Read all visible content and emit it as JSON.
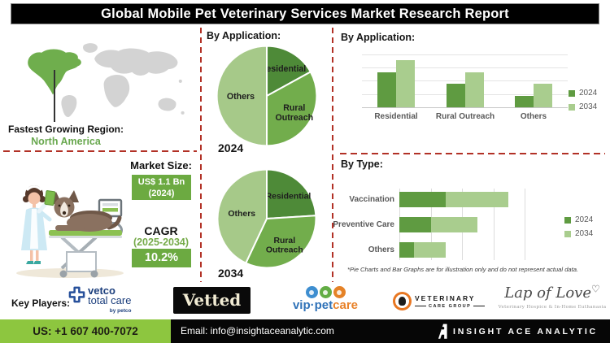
{
  "title": "Global Mobile Pet Veterinary Services Market Research Report",
  "region": {
    "label": "Fastest Growing Region:",
    "value": "North America"
  },
  "market": {
    "size_label": "Market Size:",
    "size_value": "US$ 1.1 Bn",
    "size_year": "(2024)",
    "cagr_label": "CAGR",
    "cagr_period": "(2025-2034)",
    "cagr_value": "10.2%"
  },
  "sections": {
    "pie_header": "By Application:",
    "bar_header": "By Application:",
    "type_header": "By Type:",
    "note": "*Pie Charts and Bar Graphs are for illustration only and do not represent actual data."
  },
  "chart_data": [
    {
      "type": "pie",
      "year": "2024",
      "title": "By Application 2024",
      "labels": [
        "Residential",
        "Rural Outreach",
        "Others"
      ],
      "labels_lines": [
        [
          "Residential"
        ],
        [
          "Rural",
          "Outreach"
        ],
        [
          "Others"
        ]
      ],
      "values": [
        17,
        33,
        50
      ],
      "colors": [
        "#4e8a38",
        "#72ad4c",
        "#a6c989"
      ]
    },
    {
      "type": "pie",
      "year": "2034",
      "title": "By Application 2034",
      "labels": [
        "Residential",
        "Rural Outreach",
        "Others"
      ],
      "labels_lines": [
        [
          "Residential"
        ],
        [
          "Rural",
          "Outreach"
        ],
        [
          "Others"
        ]
      ],
      "values": [
        24,
        33,
        43
      ],
      "colors": [
        "#4e8a38",
        "#72ad4c",
        "#a6c989"
      ]
    },
    {
      "type": "bar",
      "title": "By Application",
      "categories": [
        "Residential",
        "Rural Outreach",
        "Others"
      ],
      "series": [
        {
          "name": "2024",
          "color": "#5f9b41",
          "values": [
            66,
            45,
            22
          ]
        },
        {
          "name": "2034",
          "color": "#a9cd8e",
          "values": [
            89,
            66,
            45
          ]
        }
      ],
      "ylim": [
        0,
        100
      ],
      "grid": true,
      "legend_position": "right"
    },
    {
      "type": "bar-horizontal-stacked",
      "title": "By Type",
      "categories": [
        "Vaccination",
        "Preventive Care",
        "Others"
      ],
      "series": [
        {
          "name": "2024",
          "color": "#5f9b41",
          "values": [
            37,
            25,
            12
          ]
        },
        {
          "name": "2034",
          "color": "#a9cd8e",
          "values": [
            50,
            37,
            25
          ]
        }
      ],
      "xlim": [
        0,
        100
      ],
      "grid": true,
      "legend_position": "right"
    }
  ],
  "legend": {
    "s2024": "2024",
    "s2034": "2034"
  },
  "key_players": {
    "label": "Key Players:",
    "vetco": {
      "line1": "vetco",
      "line2": "total care",
      "sub": "by petco"
    },
    "vetted": {
      "text": "Vetted"
    },
    "vip": {
      "text_blue": "vip·pet",
      "text_orange": "care"
    },
    "vcg": {
      "line1": "VETERINARY",
      "line2": "CARE GROUP"
    },
    "lol": {
      "script": "Lap of Love",
      "heart": "♡",
      "tagline": "Veterinary Hospice & In-Home Euthanasia"
    }
  },
  "footer": {
    "phone": "US: +1 607 400-7072",
    "email": "Email: info@insightaceanalytic.com",
    "brand": "INSIGHT ACE ANALYTIC"
  },
  "colors": {
    "accent_green": "#6caa41",
    "footer_green": "#8dc63f",
    "na_green": "#6fae4d",
    "dash_red": "#b23126",
    "map_gray": "#d3d3d3"
  }
}
